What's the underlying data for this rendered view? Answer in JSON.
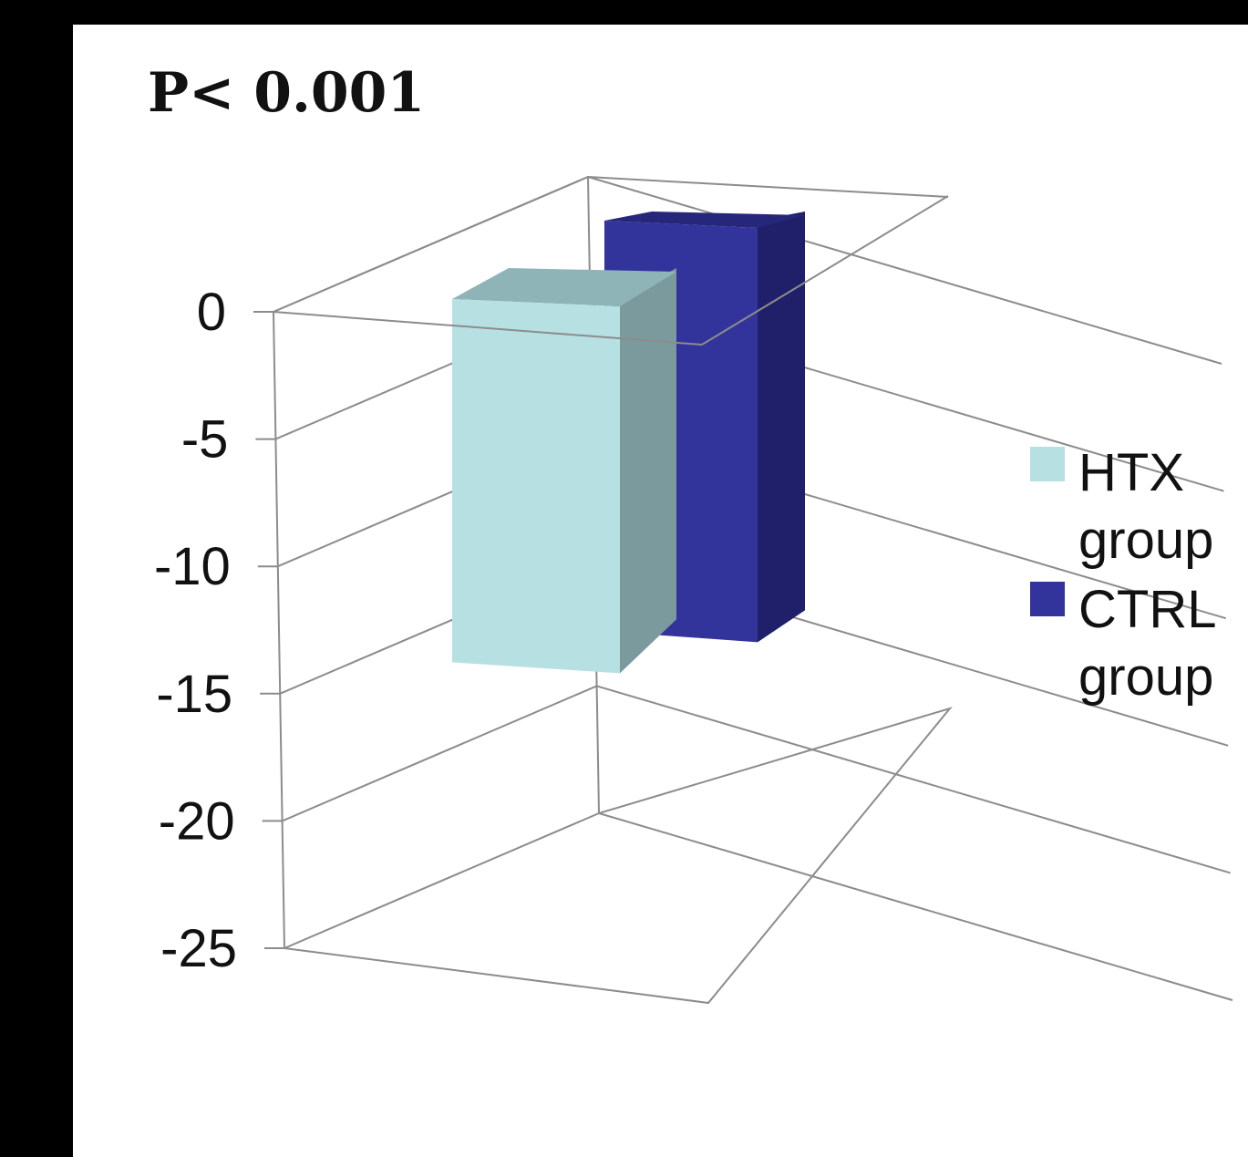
{
  "annotation": "P< 0.001",
  "colors": {
    "htx_front": "#b7e0e3",
    "htx_top": "#8fb4b7",
    "htx_side": "#7a9a9d",
    "ctrl_front": "#33339c",
    "ctrl_top": "#26267a",
    "ctrl_side": "#20206a",
    "grid": "#8c8c8c",
    "frame": "#000000"
  },
  "chart_data": {
    "type": "bar",
    "style": "3d",
    "title": "",
    "xlabel": "",
    "ylabel": "",
    "ylim": [
      -25,
      0
    ],
    "yticks": [
      0,
      -5,
      -10,
      -15,
      -20,
      -25
    ],
    "ytick_labels": [
      "0",
      "-5",
      "-10",
      "-15",
      "-20",
      "-25"
    ],
    "grid": true,
    "legend_position": "right",
    "categories": [
      ""
    ],
    "series": [
      {
        "name": "HTX group",
        "values": [
          -15
        ],
        "legend_lines": [
          "HTX",
          "group"
        ]
      },
      {
        "name": "CTRL group",
        "values": [
          -18
        ],
        "legend_lines": [
          "CTRL",
          "group"
        ]
      }
    ]
  }
}
